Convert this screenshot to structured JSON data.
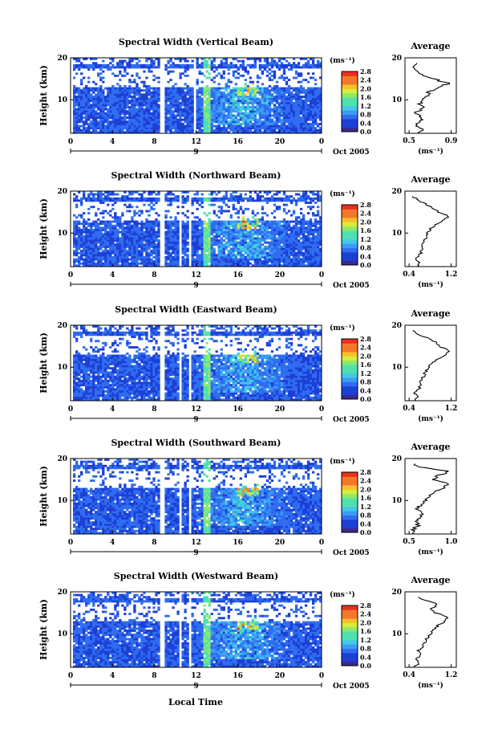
{
  "figure": {
    "xaxis_label": "Local Time",
    "date_label": "Oct 2005",
    "day_label": "9",
    "unit_label": "(ms⁻¹)"
  },
  "chart_data": [
    {
      "type": "heatmap",
      "title": "Spectral Width (Vertical Beam)",
      "ylabel": "Height (km)",
      "xlabel": "Local Time",
      "x_ticks": [
        "0",
        "4",
        "8",
        "12",
        "16",
        "20",
        "0"
      ],
      "x_range": [
        0,
        24
      ],
      "y_ticks": [
        "10",
        "20"
      ],
      "y_range": [
        2,
        20
      ],
      "colorbar": {
        "label": "(ms⁻¹)",
        "ticks": [
          "0.0",
          "0.4",
          "0.8",
          "1.2",
          "1.6",
          "2.0",
          "2.4",
          "2.8"
        ],
        "range": [
          0,
          2.8
        ]
      },
      "data_gaps_hours": [
        [
          8.6,
          8.9
        ],
        [
          11.8,
          12.0
        ]
      ],
      "average_profile": {
        "title": "Average",
        "xlabel": "(ms⁻¹)",
        "x_ticks": [
          "0.5",
          "0.9"
        ],
        "x_range": [
          0.5,
          0.9
        ],
        "y_ticks": [
          "10",
          "20"
        ],
        "height_km": [
          2,
          3,
          4,
          5,
          6,
          7,
          8,
          9,
          10,
          11,
          12,
          13,
          14,
          15,
          16,
          17,
          18,
          19
        ],
        "value": [
          0.58,
          0.62,
          0.55,
          0.63,
          0.6,
          0.57,
          0.64,
          0.6,
          0.63,
          0.67,
          0.7,
          0.78,
          0.88,
          0.72,
          0.62,
          0.57,
          0.53,
          0.55
        ]
      }
    },
    {
      "type": "heatmap",
      "title": "Spectral Width (Northward Beam)",
      "ylabel": "Height (km)",
      "xlabel": "Local Time",
      "x_ticks": [
        "0",
        "4",
        "8",
        "12",
        "16",
        "20",
        "0"
      ],
      "x_range": [
        0,
        24
      ],
      "y_ticks": [
        "10",
        "20"
      ],
      "y_range": [
        2,
        20
      ],
      "colorbar": {
        "label": "(ms⁻¹)",
        "ticks": [
          "0.0",
          "0.4",
          "0.8",
          "1.2",
          "1.6",
          "2.0",
          "2.4",
          "2.8"
        ],
        "range": [
          0,
          2.8
        ]
      },
      "data_gaps_hours": [
        [
          8.6,
          8.9
        ],
        [
          10.5,
          10.7
        ],
        [
          11.3,
          11.5
        ]
      ],
      "average_profile": {
        "title": "Average",
        "xlabel": "(ms⁻¹)",
        "x_ticks": [
          "0.4",
          "1.2"
        ],
        "x_range": [
          0.4,
          1.2
        ],
        "y_ticks": [
          "10",
          "20"
        ],
        "height_km": [
          2,
          3,
          4,
          5,
          6,
          7,
          8,
          9,
          10,
          11,
          12,
          13,
          14,
          15,
          16,
          17,
          18,
          19
        ],
        "value": [
          0.55,
          0.6,
          0.52,
          0.62,
          0.65,
          0.62,
          0.68,
          0.72,
          0.75,
          0.8,
          0.9,
          1.05,
          1.15,
          0.95,
          0.85,
          0.7,
          0.55,
          0.45
        ]
      }
    },
    {
      "type": "heatmap",
      "title": "Spectral Width (Eastward Beam)",
      "ylabel": "Height (km)",
      "xlabel": "Local Time",
      "x_ticks": [
        "0",
        "4",
        "8",
        "12",
        "16",
        "20",
        "0"
      ],
      "x_range": [
        0,
        24
      ],
      "y_ticks": [
        "10",
        "20"
      ],
      "y_range": [
        2,
        20
      ],
      "colorbar": {
        "label": "(ms⁻¹)",
        "ticks": [
          "0.0",
          "0.4",
          "0.8",
          "1.2",
          "1.6",
          "2.0",
          "2.4",
          "2.8"
        ],
        "range": [
          0,
          2.8
        ]
      },
      "data_gaps_hours": [
        [
          8.6,
          8.9
        ],
        [
          10.5,
          10.7
        ],
        [
          11.3,
          11.5
        ]
      ],
      "average_profile": {
        "title": "Average",
        "xlabel": "(ms⁻¹)",
        "x_ticks": [
          "0.4",
          "1.2"
        ],
        "x_range": [
          0.4,
          1.2
        ],
        "y_ticks": [
          "10",
          "20"
        ],
        "height_km": [
          2,
          3,
          4,
          5,
          6,
          7,
          8,
          9,
          10,
          11,
          12,
          13,
          14,
          15,
          16,
          17,
          18,
          19
        ],
        "value": [
          0.52,
          0.56,
          0.5,
          0.6,
          0.62,
          0.64,
          0.68,
          0.72,
          0.78,
          0.85,
          0.95,
          1.1,
          1.15,
          0.98,
          0.9,
          0.75,
          0.55,
          0.45
        ]
      }
    },
    {
      "type": "heatmap",
      "title": "Spectral Width (Southward Beam)",
      "ylabel": "Height (km)",
      "xlabel": "Local Time",
      "x_ticks": [
        "0",
        "4",
        "8",
        "12",
        "16",
        "20",
        "0"
      ],
      "x_range": [
        0,
        24
      ],
      "y_ticks": [
        "10",
        "20"
      ],
      "y_range": [
        2,
        20
      ],
      "colorbar": {
        "label": "(ms⁻¹)",
        "ticks": [
          "0.0",
          "0.4",
          "0.8",
          "1.2",
          "1.6",
          "2.0",
          "2.4",
          "2.8"
        ],
        "range": [
          0,
          2.8
        ]
      },
      "data_gaps_hours": [
        [
          8.6,
          8.9
        ],
        [
          10.5,
          10.7
        ],
        [
          11.3,
          11.5
        ]
      ],
      "average_profile": {
        "title": "Average",
        "xlabel": "(ms⁻¹)",
        "x_ticks": [
          "0.5",
          "1.0"
        ],
        "x_range": [
          0.5,
          1.0
        ],
        "y_ticks": [
          "10",
          "20"
        ],
        "height_km": [
          2,
          3,
          4,
          5,
          6,
          7,
          8,
          9,
          10,
          11,
          12,
          13,
          14,
          15,
          16,
          17,
          18,
          19
        ],
        "value": [
          0.58,
          0.55,
          0.6,
          0.58,
          0.62,
          0.68,
          0.6,
          0.65,
          0.7,
          0.75,
          0.82,
          0.9,
          0.95,
          0.78,
          0.85,
          0.98,
          0.62,
          0.52
        ]
      }
    },
    {
      "type": "heatmap",
      "title": "Spectral Width (Westward Beam)",
      "ylabel": "Height (km)",
      "xlabel": "Local Time",
      "x_ticks": [
        "0",
        "4",
        "8",
        "12",
        "16",
        "20",
        "0"
      ],
      "x_range": [
        0,
        24
      ],
      "y_ticks": [
        "10",
        "20"
      ],
      "y_range": [
        2,
        20
      ],
      "colorbar": {
        "label": "(ms⁻¹)",
        "ticks": [
          "0.0",
          "0.4",
          "0.8",
          "1.2",
          "1.6",
          "2.0",
          "2.4",
          "2.8"
        ],
        "range": [
          0,
          2.8
        ]
      },
      "data_gaps_hours": [
        [
          8.6,
          8.9
        ],
        [
          10.5,
          10.7
        ],
        [
          11.3,
          11.5
        ]
      ],
      "average_profile": {
        "title": "Average",
        "xlabel": "(ms⁻¹)",
        "x_ticks": [
          "0.4",
          "1.2"
        ],
        "x_range": [
          0.4,
          1.2
        ],
        "y_ticks": [
          "10",
          "20"
        ],
        "height_km": [
          2,
          3,
          4,
          5,
          6,
          7,
          8,
          9,
          10,
          11,
          12,
          13,
          14,
          15,
          16,
          17,
          18,
          19
        ],
        "value": [
          0.5,
          0.6,
          0.55,
          0.62,
          0.58,
          0.66,
          0.7,
          0.74,
          0.8,
          0.88,
          0.95,
          1.08,
          1.15,
          0.9,
          0.82,
          0.95,
          0.7,
          0.5
        ]
      }
    }
  ]
}
